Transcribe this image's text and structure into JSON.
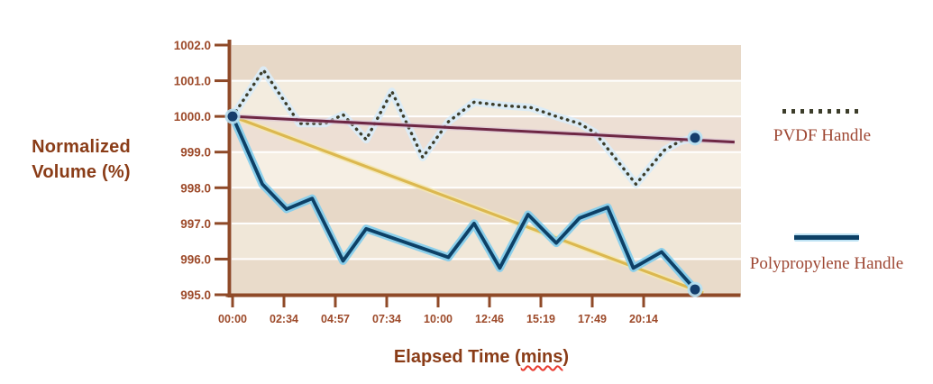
{
  "figure": {
    "y_axis_title_line1": "Normalized",
    "y_axis_title_line2": "Volume (%)",
    "x_axis_title_prefix": "Elapsed Time (",
    "x_axis_title_word": "mins",
    "x_axis_title_suffix": ")"
  },
  "legend": {
    "position": "right",
    "items": [
      {
        "label": "PVDF Handle",
        "swatch": "dotted"
      },
      {
        "label": "Polypropylene Handle",
        "swatch": "solid"
      }
    ]
  },
  "chart_data": {
    "type": "line",
    "title": "",
    "xlabel": "Elapsed Time (mins)",
    "ylabel": "Normalized Volume (%)",
    "x_tick_labels": [
      "00:00",
      "02:34",
      "04:57",
      "07:34",
      "10:00",
      "12:46",
      "15:19",
      "17:49",
      "20:14"
    ],
    "x_note": "x values are in tick-index units (0 = 00:00 ... 8 = 20:14); both series end at an unlabeled position x = 9",
    "y_ticks": [
      1002.0,
      1001.0,
      1000.0,
      999.0,
      998.0,
      997.0,
      996.0,
      995.0
    ],
    "ylim": [
      995.0,
      1002.0
    ],
    "grid": "white horizontal gridlines at each 1.0 step over alternating tinted bands",
    "legend_position": "right",
    "series": [
      {
        "name": "PVDF Handle",
        "style": "dotted",
        "color": "#3c3d2a",
        "halo": "#d9ecf8",
        "points": [
          [
            0,
            1000.0
          ],
          [
            0.6,
            1001.3
          ],
          [
            1.3,
            999.8
          ],
          [
            1.8,
            999.8
          ],
          [
            2.15,
            1000.05
          ],
          [
            2.6,
            999.35
          ],
          [
            3.1,
            1000.7
          ],
          [
            3.7,
            998.85
          ],
          [
            4.2,
            999.85
          ],
          [
            4.7,
            1000.4
          ],
          [
            5.3,
            1000.3
          ],
          [
            5.8,
            1000.25
          ],
          [
            6.3,
            1000.0
          ],
          [
            6.75,
            999.8
          ],
          [
            7.05,
            999.55
          ],
          [
            7.85,
            998.1
          ],
          [
            8.4,
            999.05
          ],
          [
            8.7,
            999.3
          ],
          [
            9,
            999.4
          ]
        ]
      },
      {
        "name": "Polypropylene Handle",
        "style": "solid",
        "color": "#0d4066",
        "halo": "#85cdec",
        "points": [
          [
            0,
            1000.0
          ],
          [
            0.58,
            998.1
          ],
          [
            1.05,
            997.4
          ],
          [
            1.55,
            997.7
          ],
          [
            2.15,
            995.95
          ],
          [
            2.6,
            996.85
          ],
          [
            3.2,
            996.55
          ],
          [
            4.2,
            996.05
          ],
          [
            4.7,
            997.0
          ],
          [
            5.2,
            995.75
          ],
          [
            5.75,
            997.25
          ],
          [
            6.3,
            996.45
          ],
          [
            6.75,
            997.15
          ],
          [
            7.3,
            997.45
          ],
          [
            7.8,
            995.75
          ],
          [
            8.35,
            996.2
          ],
          [
            9,
            995.15
          ]
        ]
      },
      {
        "name": "PVDF Handle trendline",
        "style": "trend",
        "color": "#6e2744",
        "halo": "#dbc3d6",
        "points": [
          [
            0,
            1000.0
          ],
          [
            9.77,
            999.28
          ]
        ]
      },
      {
        "name": "Polypropylene Handle trendline",
        "style": "trend",
        "color": "#dcb850",
        "halo": "#f4e7b0",
        "points": [
          [
            0,
            1000.0
          ],
          [
            9.16,
            995.05
          ]
        ]
      }
    ],
    "markers": [
      {
        "x": 0,
        "y": 1000.0,
        "note": "shared start point"
      },
      {
        "x": 9,
        "y": 999.4,
        "note": "PVDF Handle end point"
      },
      {
        "x": 9,
        "y": 995.15,
        "note": "Polypropylene Handle end point"
      }
    ]
  },
  "colors": {
    "background": "#ffffff",
    "plot_bands": [
      "#e7d8c7",
      "#f3ecdf",
      "#eddfd4",
      "#f6efe4",
      "#e7d8c7",
      "#f0e7d8",
      "#e9dbca"
    ],
    "gridline": "#ffffff",
    "axis_line": "#8f4a28",
    "tick_label": "#9d4a2a",
    "axis_title": "#8a3c17",
    "legend_text": "#9e4733",
    "marker_fill": "#153e6c",
    "marker_halo": "#b5e0f3",
    "spellcheck_underline": "#e8392e"
  }
}
